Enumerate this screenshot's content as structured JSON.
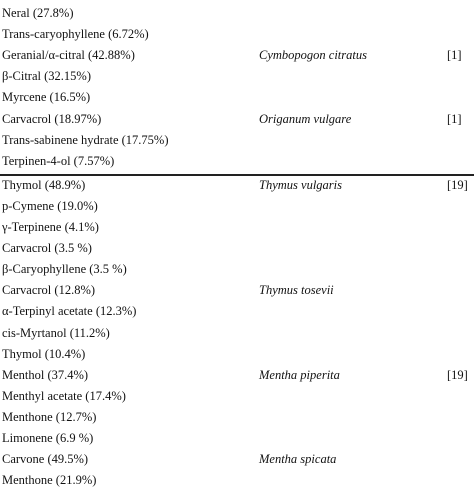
{
  "table": {
    "rows": [
      {
        "compound": "Neral (27.8%)"
      },
      {
        "compound": "Trans-caryophyllene (6.72%)"
      },
      {
        "compound": "Geranial/α-citral (42.88%)",
        "species": "Cymbopogon citratus",
        "ref": "[1]"
      },
      {
        "compound": "β-Citral (32.15%)"
      },
      {
        "compound": "Myrcene (16.5%)"
      },
      {
        "compound": "Carvacrol (18.97%)",
        "species": "Origanum vulgare",
        "ref": "[1]"
      },
      {
        "compound": "Trans-sabinene hydrate (17.75%)"
      },
      {
        "compound": "Terpinen-4-ol (7.57%)"
      },
      {
        "compound": "Thymol (48.9%)",
        "species": "Thymus vulgaris",
        "ref": "[19]"
      },
      {
        "compound": "p-Cymene (19.0%)"
      },
      {
        "compound": "γ-Terpinene (4.1%)"
      },
      {
        "compound": "Carvacrol (3.5 %)"
      },
      {
        "compound": "β-Caryophyllene (3.5 %)"
      },
      {
        "compound": "Carvacrol (12.8%)",
        "species": "Thymus tosevii"
      },
      {
        "compound": "α-Terpinyl acetate (12.3%)"
      },
      {
        "compound": "cis-Myrtanol (11.2%)"
      },
      {
        "compound": "Thymol (10.4%)"
      },
      {
        "compound": "Menthol (37.4%)",
        "species": "Mentha piperita",
        "ref": "[19]"
      },
      {
        "compound": "Menthyl acetate (17.4%)"
      },
      {
        "compound": "Menthone (12.7%)"
      },
      {
        "compound": "Limonene (6.9 %)"
      },
      {
        "compound": "Carvone (49.5%)",
        "species": "Mentha spicata"
      },
      {
        "compound": "Menthone (21.9%)"
      }
    ]
  }
}
